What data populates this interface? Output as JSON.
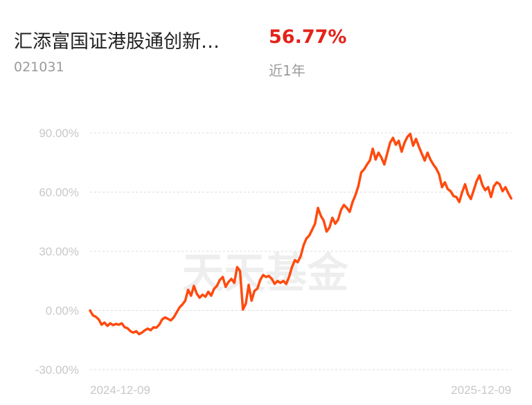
{
  "fund": {
    "name": "汇添富国证港股通创新…",
    "code": "021031",
    "return": "56.77%",
    "period": "近1年",
    "return_color": "#e2231a"
  },
  "watermark": "天天基金",
  "chart_data": {
    "type": "line",
    "line_color": "#ff4a0e",
    "y_ticks": [
      "90.00%",
      "60.00%",
      "30.00%",
      "0.00%",
      "-30.00%"
    ],
    "y_tick_values": [
      90,
      60,
      30,
      0,
      -30
    ],
    "ylim": [
      -30,
      90
    ],
    "x_labels": [
      "2024-12-09",
      "2025-12-09"
    ],
    "grid": true,
    "series": [
      {
        "values": [
          0,
          -2.5,
          -3.2,
          -4.5,
          -7.2,
          -6.1,
          -7.8,
          -6.5,
          -7.4,
          -6.8,
          -7.2,
          -6.5,
          -8.5,
          -9.0,
          -10.5,
          -11.2,
          -10.5,
          -12.0,
          -11.2,
          -10.0,
          -9.2,
          -10.0,
          -8.5,
          -8.7,
          -7.2,
          -4.5,
          -3.5,
          -4.2,
          -5.0,
          -3.5,
          -1.0,
          1.5,
          3.0,
          5.0,
          10.5,
          7.5,
          12.5,
          8.5,
          6.5,
          8.0,
          7.0,
          9.5,
          7.5,
          11.0,
          12.5,
          15.5,
          17.0,
          12.0,
          14.5,
          16.0,
          14.0,
          22.0,
          20.0,
          0.5,
          3.5,
          13.0,
          5.0,
          10.0,
          11.0,
          15.5,
          18.0,
          17.0,
          17.5,
          16.0,
          13.5,
          15.0,
          14.0,
          15.0,
          13.5,
          17.0,
          22.0,
          25.5,
          24.5,
          27.5,
          33.0,
          36.5,
          38.0,
          41.0,
          44.0,
          52.0,
          48.0,
          45.5,
          40.0,
          42.0,
          47.0,
          44.0,
          46.0,
          51.0,
          53.5,
          52.0,
          50.0,
          55.0,
          58.5,
          63.0,
          70.0,
          71.5,
          74.0,
          76.0,
          82.0,
          76.5,
          80.0,
          77.5,
          74.0,
          79.5,
          85.0,
          87.5,
          84.0,
          86.0,
          80.5,
          85.0,
          88.0,
          89.5,
          83.5,
          87.0,
          83.0,
          79.5,
          76.0,
          80.0,
          76.5,
          74.0,
          72.0,
          69.0,
          62.5,
          65.0,
          61.5,
          60.5,
          58.0,
          57.5,
          55.0,
          60.0,
          64.0,
          59.0,
          56.5,
          61.0,
          65.5,
          68.5,
          63.5,
          61.0,
          62.5,
          57.5,
          63.0,
          65.0,
          64.0,
          60.5,
          62.5,
          59.5,
          56.77
        ]
      }
    ]
  }
}
